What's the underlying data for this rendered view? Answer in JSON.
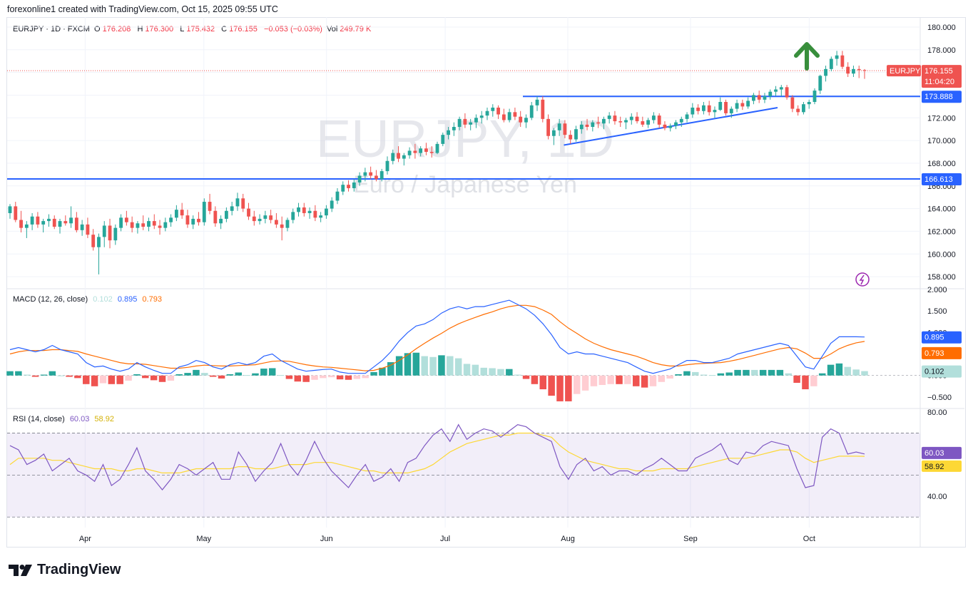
{
  "header": {
    "text": "forexonline1 created with TradingView.com, Oct 15, 2025 09:55 UTC"
  },
  "legend": {
    "symbol": "EURJPY · 1D · FXCM",
    "o_label": "O",
    "o": "176.208",
    "h_label": "H",
    "h": "176.300",
    "l_label": "L",
    "l": "175.432",
    "c_label": "C",
    "c": "176.155",
    "change": "−0.053 (−0.03%)",
    "vol_label": "Vol",
    "vol": "249.79 K"
  },
  "watermark": {
    "symbol": "EURJPY, 1D",
    "description": "Euro / Japanese Yen"
  },
  "macd": {
    "label": "MACD (12, 26, close)",
    "hist": "0.102",
    "macd": "0.895",
    "signal": "0.793",
    "ticks": [
      "2.000",
      "1.500",
      "1.000",
      "0.500",
      "0.000",
      "−0.500"
    ]
  },
  "rsi": {
    "label": "RSI (14, close)",
    "rsi": "60.03",
    "ma": "58.92",
    "ticks": [
      "80.00",
      "60.00",
      "40.00"
    ]
  },
  "price_ticks": [
    "180.000",
    "178.000",
    "176.000",
    "174.000",
    "172.000",
    "170.000",
    "168.000",
    "166.000",
    "164.000",
    "162.000",
    "160.000",
    "158.000"
  ],
  "price_labels": {
    "last": {
      "symbol": "EURJPY",
      "price": "176.155",
      "countdown": "11:04:20"
    },
    "resistance": "173.888",
    "support": "166.613"
  },
  "months": [
    "Apr",
    "May",
    "Jun",
    "Jul",
    "Aug",
    "Sep",
    "Oct"
  ],
  "colors": {
    "up": "#26a69a",
    "down": "#ef5350",
    "line": "#2962ff",
    "signal": "#ff6d00",
    "rsi": "#7e57c2",
    "rsi_ma": "#fdd835",
    "arrow": "#388e3c"
  },
  "footer": {
    "brand": "TradingView"
  },
  "chart_data": {
    "type": "candlestick",
    "symbol": "EURJPY",
    "timeframe": "1D",
    "ylim": [
      157,
      180.5
    ],
    "grid": true,
    "x_start": "2025-03-13",
    "x_end": "2025-10-15",
    "ohlc": [
      [
        163.6,
        164.4,
        163.1,
        164.2
      ],
      [
        164.2,
        164.6,
        162.8,
        163.0
      ],
      [
        163.0,
        163.8,
        161.9,
        162.3
      ],
      [
        162.3,
        162.9,
        161.4,
        162.6
      ],
      [
        162.6,
        163.6,
        162.1,
        163.3
      ],
      [
        163.3,
        163.7,
        162.3,
        162.6
      ],
      [
        162.6,
        163.1,
        161.9,
        162.9
      ],
      [
        162.9,
        163.5,
        162.4,
        163.1
      ],
      [
        163.1,
        163.4,
        162.2,
        162.4
      ],
      [
        162.4,
        163.1,
        161.8,
        162.9
      ],
      [
        162.9,
        163.4,
        162.5,
        162.7
      ],
      [
        162.7,
        164.2,
        162.3,
        163.2
      ],
      [
        163.2,
        163.7,
        161.9,
        162.1
      ],
      [
        162.1,
        163.0,
        161.6,
        162.6
      ],
      [
        162.6,
        163.2,
        161.4,
        161.7
      ],
      [
        161.7,
        162.2,
        160.3,
        160.6
      ],
      [
        160.6,
        161.8,
        158.2,
        161.5
      ],
      [
        161.5,
        162.9,
        160.6,
        162.5
      ],
      [
        162.5,
        163.1,
        160.5,
        161.2
      ],
      [
        161.2,
        162.6,
        160.8,
        162.3
      ],
      [
        162.3,
        163.5,
        162.0,
        163.2
      ],
      [
        163.2,
        163.8,
        162.5,
        162.8
      ],
      [
        162.8,
        163.3,
        161.9,
        162.3
      ],
      [
        162.3,
        162.9,
        161.8,
        162.7
      ],
      [
        162.7,
        163.4,
        162.1,
        162.4
      ],
      [
        162.4,
        163.2,
        162.0,
        162.9
      ],
      [
        162.9,
        163.5,
        162.2,
        162.5
      ],
      [
        162.5,
        163.0,
        161.7,
        162.3
      ],
      [
        162.3,
        163.2,
        162.0,
        162.8
      ],
      [
        162.8,
        163.5,
        162.4,
        163.2
      ],
      [
        163.2,
        164.3,
        162.9,
        163.9
      ],
      [
        163.9,
        164.5,
        163.1,
        163.4
      ],
      [
        163.4,
        163.9,
        162.3,
        162.6
      ],
      [
        162.6,
        163.4,
        162.2,
        163.1
      ],
      [
        163.1,
        163.7,
        162.5,
        162.8
      ],
      [
        162.8,
        164.9,
        162.5,
        164.6
      ],
      [
        164.6,
        165.3,
        163.5,
        163.8
      ],
      [
        163.8,
        164.2,
        162.4,
        162.7
      ],
      [
        162.7,
        163.4,
        162.2,
        163.1
      ],
      [
        163.1,
        164.1,
        162.8,
        163.8
      ],
      [
        163.8,
        164.6,
        163.4,
        164.2
      ],
      [
        164.2,
        165.4,
        163.8,
        164.9
      ],
      [
        164.9,
        165.3,
        163.7,
        164.0
      ],
      [
        164.0,
        164.5,
        163.0,
        163.3
      ],
      [
        163.3,
        163.8,
        162.5,
        162.9
      ],
      [
        162.9,
        163.5,
        162.6,
        163.1
      ],
      [
        163.1,
        163.8,
        162.7,
        163.4
      ],
      [
        163.4,
        163.9,
        162.7,
        163.0
      ],
      [
        163.0,
        163.6,
        162.3,
        162.6
      ],
      [
        162.6,
        163.3,
        161.2,
        162.3
      ],
      [
        162.3,
        163.2,
        162.0,
        163.0
      ],
      [
        163.0,
        164.0,
        162.7,
        163.7
      ],
      [
        163.7,
        164.5,
        163.3,
        164.1
      ],
      [
        164.1,
        164.5,
        163.3,
        163.6
      ],
      [
        163.6,
        164.1,
        163.1,
        163.8
      ],
      [
        163.8,
        164.3,
        162.9,
        163.2
      ],
      [
        163.2,
        163.7,
        162.8,
        163.4
      ],
      [
        163.4,
        164.3,
        163.1,
        164.0
      ],
      [
        164.0,
        165.0,
        163.7,
        164.7
      ],
      [
        164.7,
        165.8,
        164.4,
        165.5
      ],
      [
        165.5,
        166.4,
        165.2,
        166.1
      ],
      [
        166.1,
        166.5,
        165.5,
        165.8
      ],
      [
        165.8,
        166.6,
        165.5,
        166.3
      ],
      [
        166.3,
        167.2,
        166.0,
        166.9
      ],
      [
        166.9,
        167.6,
        166.4,
        167.2
      ],
      [
        167.2,
        167.7,
        166.6,
        166.9
      ],
      [
        166.9,
        167.4,
        166.4,
        166.6
      ],
      [
        166.6,
        167.5,
        166.4,
        167.3
      ],
      [
        167.3,
        168.6,
        167.0,
        168.2
      ],
      [
        168.2,
        169.2,
        167.9,
        168.9
      ],
      [
        168.9,
        169.5,
        168.1,
        168.4
      ],
      [
        168.4,
        168.9,
        167.8,
        168.7
      ],
      [
        168.7,
        169.4,
        168.4,
        169.1
      ],
      [
        169.1,
        169.7,
        168.4,
        168.9
      ],
      [
        168.9,
        169.5,
        168.6,
        169.3
      ],
      [
        169.3,
        169.8,
        168.7,
        169.0
      ],
      [
        169.0,
        169.5,
        168.5,
        168.9
      ],
      [
        168.9,
        169.9,
        168.8,
        169.7
      ],
      [
        169.7,
        170.7,
        169.5,
        170.5
      ],
      [
        170.5,
        171.2,
        170.1,
        170.9
      ],
      [
        170.9,
        171.6,
        170.4,
        171.2
      ],
      [
        171.2,
        172.1,
        170.9,
        171.9
      ],
      [
        171.9,
        172.4,
        171.1,
        171.4
      ],
      [
        171.4,
        171.9,
        170.9,
        171.6
      ],
      [
        171.6,
        172.3,
        171.1,
        172.0
      ],
      [
        172.0,
        172.6,
        171.5,
        172.2
      ],
      [
        172.2,
        172.9,
        171.8,
        172.6
      ],
      [
        172.6,
        173.2,
        172.1,
        172.9
      ],
      [
        172.9,
        173.1,
        171.9,
        172.3
      ],
      [
        172.3,
        172.8,
        171.6,
        171.8
      ],
      [
        171.8,
        172.8,
        171.6,
        172.5
      ],
      [
        172.5,
        172.9,
        171.8,
        172.1
      ],
      [
        172.1,
        172.6,
        171.2,
        171.6
      ],
      [
        171.6,
        172.3,
        171.1,
        172.0
      ],
      [
        172.0,
        173.4,
        171.8,
        173.1
      ],
      [
        173.1,
        173.9,
        172.6,
        173.6
      ],
      [
        173.6,
        173.9,
        171.6,
        171.9
      ],
      [
        171.9,
        172.3,
        170.1,
        170.4
      ],
      [
        170.4,
        171.1,
        169.6,
        170.9
      ],
      [
        170.9,
        171.9,
        170.4,
        171.5
      ],
      [
        171.5,
        171.8,
        170.2,
        170.5
      ],
      [
        170.5,
        170.9,
        169.7,
        170.1
      ],
      [
        170.1,
        171.3,
        169.9,
        171.0
      ],
      [
        171.0,
        171.7,
        170.6,
        171.4
      ],
      [
        171.4,
        171.9,
        170.9,
        171.2
      ],
      [
        171.2,
        171.8,
        170.8,
        171.6
      ],
      [
        171.6,
        172.1,
        171.1,
        171.5
      ],
      [
        171.5,
        172.1,
        171.0,
        171.9
      ],
      [
        171.9,
        172.5,
        171.5,
        172.2
      ],
      [
        172.2,
        172.6,
        171.4,
        171.7
      ],
      [
        171.7,
        172.1,
        171.2,
        171.6
      ],
      [
        171.6,
        172.0,
        171.0,
        171.8
      ],
      [
        171.8,
        172.4,
        171.4,
        172.1
      ],
      [
        172.1,
        172.5,
        171.5,
        171.7
      ],
      [
        171.7,
        172.1,
        171.2,
        171.4
      ],
      [
        171.4,
        172.0,
        171.1,
        171.8
      ],
      [
        171.8,
        172.5,
        171.5,
        172.2
      ],
      [
        172.2,
        172.4,
        171.1,
        171.4
      ],
      [
        171.4,
        171.7,
        170.9,
        171.1
      ],
      [
        171.1,
        171.5,
        170.8,
        171.3
      ],
      [
        171.3,
        171.8,
        171.0,
        171.6
      ],
      [
        171.6,
        172.1,
        171.2,
        171.9
      ],
      [
        171.9,
        172.5,
        171.6,
        172.3
      ],
      [
        172.3,
        173.3,
        172.0,
        172.9
      ],
      [
        172.9,
        173.2,
        172.3,
        172.6
      ],
      [
        172.6,
        173.4,
        172.3,
        173.1
      ],
      [
        173.1,
        173.5,
        172.2,
        172.5
      ],
      [
        172.5,
        173.0,
        172.0,
        172.7
      ],
      [
        172.7,
        173.8,
        172.6,
        173.4
      ],
      [
        173.4,
        173.6,
        172.2,
        172.4
      ],
      [
        172.4,
        173.0,
        172.0,
        172.8
      ],
      [
        172.8,
        173.6,
        172.5,
        173.3
      ],
      [
        173.3,
        173.6,
        172.7,
        173.0
      ],
      [
        173.0,
        173.8,
        172.8,
        173.5
      ],
      [
        173.5,
        174.2,
        173.2,
        174.0
      ],
      [
        174.0,
        174.4,
        173.3,
        173.6
      ],
      [
        173.6,
        174.2,
        173.3,
        173.9
      ],
      [
        173.9,
        174.5,
        173.6,
        174.3
      ],
      [
        174.3,
        174.8,
        173.9,
        174.5
      ],
      [
        174.5,
        174.9,
        173.9,
        174.7
      ],
      [
        174.7,
        174.9,
        173.6,
        173.8
      ],
      [
        173.8,
        174.0,
        172.5,
        172.8
      ],
      [
        172.8,
        173.1,
        172.2,
        172.5
      ],
      [
        172.5,
        173.4,
        172.3,
        173.2
      ],
      [
        173.2,
        173.6,
        172.8,
        173.4
      ],
      [
        173.4,
        174.6,
        173.2,
        174.4
      ],
      [
        174.4,
        175.8,
        174.1,
        175.7
      ],
      [
        175.7,
        176.6,
        175.2,
        176.3
      ],
      [
        176.3,
        177.4,
        176.1,
        177.2
      ],
      [
        177.2,
        177.9,
        176.6,
        177.5
      ],
      [
        177.5,
        177.9,
        176.3,
        176.5
      ],
      [
        176.5,
        176.9,
        175.6,
        175.9
      ],
      [
        175.9,
        176.6,
        175.6,
        176.3
      ],
      [
        176.3,
        176.6,
        175.5,
        176.2
      ],
      [
        176.208,
        176.3,
        175.432,
        176.155
      ]
    ],
    "levels": [
      {
        "name": "resistance",
        "value": 173.888
      },
      {
        "name": "support",
        "value": 166.613
      }
    ],
    "trendline": [
      {
        "date": "2025-07-31",
        "value": 169.6
      },
      {
        "date": "2025-09-23",
        "value": 172.9
      }
    ],
    "last_price": 176.155,
    "macd_series": {
      "macd": [
        0.6,
        0.65,
        0.6,
        0.55,
        0.6,
        0.7,
        0.6,
        0.55,
        0.5,
        0.3,
        0.2,
        0.22,
        0.15,
        0.1,
        0.15,
        0.3,
        0.2,
        0.12,
        0.05,
        0.05,
        0.2,
        0.25,
        0.35,
        0.3,
        0.2,
        0.15,
        0.25,
        0.3,
        0.25,
        0.3,
        0.45,
        0.5,
        0.35,
        0.25,
        0.15,
        0.1,
        0.12,
        0.14,
        0.15,
        0.08,
        0.05,
        0.05,
        0.05,
        0.2,
        0.35,
        0.55,
        0.8,
        1.0,
        1.15,
        1.2,
        1.3,
        1.45,
        1.55,
        1.6,
        1.55,
        1.6,
        1.6,
        1.65,
        1.7,
        1.75,
        1.65,
        1.55,
        1.4,
        1.2,
        0.95,
        0.65,
        0.5,
        0.55,
        0.5,
        0.5,
        0.45,
        0.4,
        0.35,
        0.3,
        0.2,
        0.1,
        0.05,
        0.1,
        0.15,
        0.25,
        0.35,
        0.35,
        0.3,
        0.3,
        0.35,
        0.4,
        0.5,
        0.55,
        0.6,
        0.65,
        0.7,
        0.75,
        0.7,
        0.45,
        0.2,
        0.15,
        0.45,
        0.75,
        0.9,
        0.9,
        0.9,
        0.895
      ],
      "signal": [
        0.5,
        0.55,
        0.58,
        0.58,
        0.58,
        0.6,
        0.6,
        0.58,
        0.56,
        0.5,
        0.45,
        0.4,
        0.35,
        0.3,
        0.27,
        0.27,
        0.26,
        0.23,
        0.2,
        0.17,
        0.17,
        0.19,
        0.22,
        0.24,
        0.23,
        0.22,
        0.22,
        0.23,
        0.24,
        0.25,
        0.29,
        0.33,
        0.34,
        0.33,
        0.29,
        0.25,
        0.22,
        0.2,
        0.19,
        0.17,
        0.15,
        0.13,
        0.11,
        0.12,
        0.17,
        0.24,
        0.35,
        0.48,
        0.62,
        0.75,
        0.87,
        0.98,
        1.1,
        1.2,
        1.28,
        1.35,
        1.42,
        1.48,
        1.55,
        1.6,
        1.63,
        1.63,
        1.6,
        1.52,
        1.42,
        1.25,
        1.1,
        0.98,
        0.85,
        0.75,
        0.67,
        0.6,
        0.55,
        0.5,
        0.45,
        0.38,
        0.3,
        0.25,
        0.22,
        0.22,
        0.25,
        0.27,
        0.28,
        0.29,
        0.3,
        0.33,
        0.37,
        0.42,
        0.47,
        0.52,
        0.57,
        0.62,
        0.65,
        0.62,
        0.52,
        0.4,
        0.4,
        0.5,
        0.62,
        0.7,
        0.76,
        0.793
      ]
    },
    "rsi_series": {
      "rsi": [
        64,
        62,
        55,
        57,
        60,
        52,
        55,
        58,
        52,
        50,
        47,
        55,
        45,
        48,
        55,
        63,
        52,
        48,
        43,
        48,
        55,
        53,
        50,
        53,
        56,
        48,
        48,
        61,
        55,
        47,
        52,
        56,
        65,
        55,
        50,
        57,
        66,
        58,
        52,
        48,
        44,
        50,
        55,
        47,
        49,
        53,
        47,
        56,
        58,
        64,
        69,
        72,
        66,
        74,
        67,
        70,
        72,
        71,
        68,
        71,
        74,
        73,
        70,
        68,
        66,
        54,
        48,
        55,
        58,
        52,
        54,
        50,
        52,
        52,
        50,
        53,
        55,
        58,
        55,
        52,
        52,
        58,
        60,
        62,
        65,
        57,
        55,
        61,
        60,
        64,
        66,
        65,
        64,
        53,
        44,
        45,
        68,
        72,
        70,
        60,
        61,
        60.03
      ],
      "ma": [
        55,
        58,
        58,
        58,
        58,
        57,
        57,
        56,
        55,
        54,
        53,
        53,
        53,
        52,
        52,
        53,
        53,
        52,
        51,
        51,
        51,
        52,
        53,
        53,
        53,
        53,
        53,
        54,
        54,
        53,
        53,
        53,
        54,
        55,
        55,
        55,
        56,
        56,
        56,
        55,
        54,
        53,
        52,
        52,
        51,
        51,
        51,
        51,
        52,
        53,
        55,
        58,
        61,
        63,
        65,
        66,
        67,
        68,
        69,
        69,
        70,
        70,
        70,
        69,
        68,
        64,
        61,
        59,
        57,
        56,
        55,
        54,
        53,
        53,
        52,
        52,
        52,
        53,
        53,
        53,
        53,
        54,
        55,
        56,
        57,
        58,
        58,
        58,
        59,
        60,
        61,
        62,
        62,
        61,
        58,
        56,
        57,
        58,
        59,
        59,
        59,
        58.92
      ]
    }
  }
}
